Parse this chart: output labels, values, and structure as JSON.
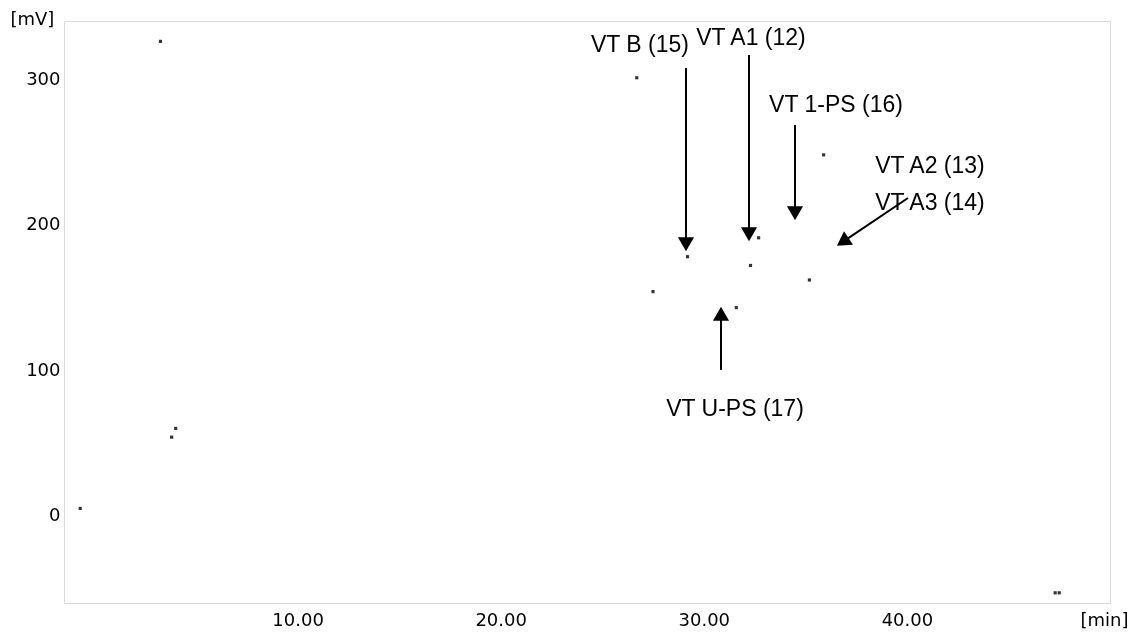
{
  "chart_data": {
    "type": "scatter",
    "x": [
      -0.7,
      3.25,
      3.8,
      4.0,
      26.7,
      27.5,
      29.2,
      31.6,
      32.3,
      32.7,
      35.2,
      35.9,
      47.3,
      47.5
    ],
    "series": [
      {
        "color": "#333333",
        "values": [
          5,
          326,
          54,
          60,
          301,
          154,
          178,
          143,
          172,
          191,
          162,
          248,
          -53,
          -53
        ]
      }
    ],
    "xlabel": "[min]",
    "ylabel": "[mV]",
    "xlim": [
      -1.5,
      50
    ],
    "ylim": [
      -60,
      340
    ],
    "xticks": [
      {
        "value": 10,
        "label": "10.00"
      },
      {
        "value": 20,
        "label": "20.00"
      },
      {
        "value": 30,
        "label": "30.00"
      },
      {
        "value": 40,
        "label": "40.00"
      }
    ],
    "yticks": [
      0,
      100,
      200,
      300
    ],
    "marker": "square",
    "grid": false,
    "annotations": [
      "VT B (15)",
      "VT A1 (12)",
      "VT 1-PS (16)",
      "VT A2 (13)\nVT A3 (14)",
      "VT U-PS (17)"
    ]
  }
}
